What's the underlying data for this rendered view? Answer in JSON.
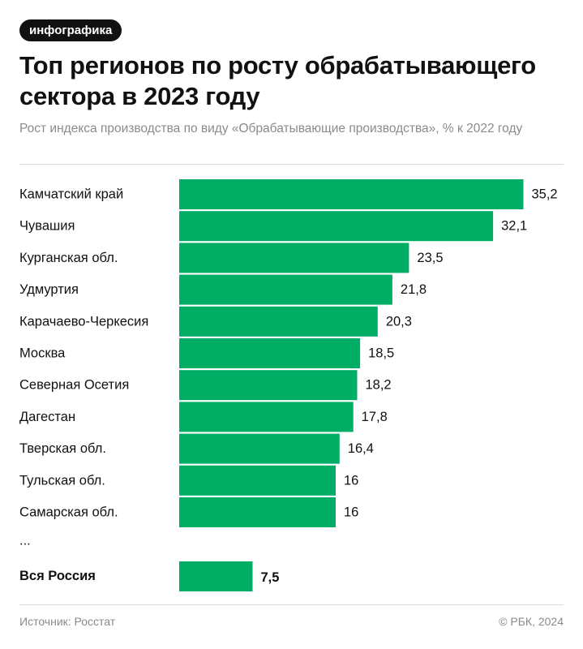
{
  "badge": "инфографика",
  "title": "Топ регионов по росту обрабатывающего сектора в 2023 году",
  "subtitle": "Рост индекса производства по виду «Обрабатывающие производства», % к 2022 году",
  "footer": {
    "source": "Источник: Росстат",
    "copyright": "© РБК, 2024"
  },
  "colors": {
    "bar": "#00ad64",
    "text": "#111111",
    "muted": "#8a8a8a"
  },
  "chart_data": {
    "type": "bar",
    "orientation": "horizontal",
    "categories": [
      "Камчатский край",
      "Чувашия",
      "Курганская обл.",
      "Удмуртия",
      "Карачаево-Черкесия",
      "Москва",
      "Северная Осетия",
      "Дагестан",
      "Тверская обл.",
      "Тульская обл.",
      "Самарская обл."
    ],
    "values": [
      35.2,
      32.1,
      23.5,
      21.8,
      20.3,
      18.5,
      18.2,
      17.8,
      16.4,
      16,
      16
    ],
    "value_labels": [
      "35,2",
      "32,1",
      "23,5",
      "21,8",
      "20,3",
      "18,5",
      "18,2",
      "17,8",
      "16,4",
      "16",
      "16"
    ],
    "ellipsis": "...",
    "total": {
      "category": "Вся Россия",
      "value": 7.5,
      "value_label": "7,5"
    },
    "grid": false,
    "legend": false
  }
}
